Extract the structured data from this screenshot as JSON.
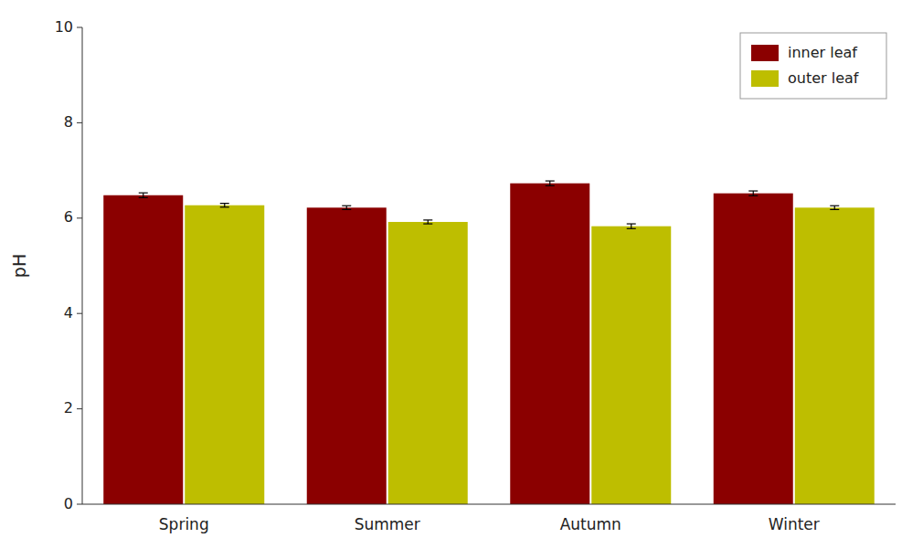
{
  "chart_data": {
    "type": "bar",
    "categories": [
      "Spring",
      "Summer",
      "Autumn",
      "Winter"
    ],
    "series": [
      {
        "name": "inner leaf",
        "color": "#8B0000",
        "values": [
          6.48,
          6.22,
          6.73,
          6.52
        ],
        "errors": [
          0.05,
          0.04,
          0.05,
          0.05
        ]
      },
      {
        "name": "outer leaf",
        "color": "#BEBE00",
        "values": [
          6.27,
          5.92,
          5.83,
          6.22
        ],
        "errors": [
          0.04,
          0.04,
          0.05,
          0.04
        ]
      }
    ],
    "ylabel": "pH",
    "ylim": [
      0,
      10
    ],
    "yticks": [
      0,
      2,
      4,
      6,
      8,
      10
    ],
    "grid": false,
    "legend": "upper right"
  }
}
